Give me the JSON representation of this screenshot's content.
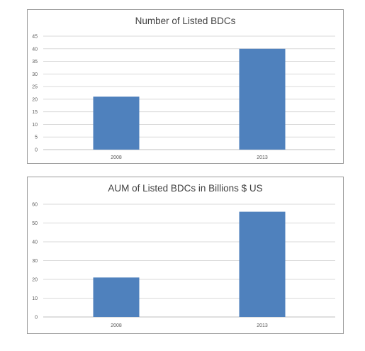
{
  "chart_data": [
    {
      "type": "bar",
      "title": "Number of Listed BDCs",
      "categories": [
        "2008",
        "2013"
      ],
      "values": [
        21,
        40
      ],
      "ylim": [
        0,
        45
      ],
      "yticks": [
        0,
        5,
        10,
        15,
        20,
        25,
        30,
        35,
        40,
        45
      ],
      "grid": true,
      "bar_color": "#4f81bd"
    },
    {
      "type": "bar",
      "title": "AUM of Listed BDCs in Billions $ US",
      "categories": [
        "2008",
        "2013"
      ],
      "values": [
        21,
        56
      ],
      "ylim": [
        0,
        60
      ],
      "yticks": [
        0,
        10,
        20,
        30,
        40,
        50,
        60
      ],
      "grid": true,
      "bar_color": "#4f81bd"
    }
  ]
}
